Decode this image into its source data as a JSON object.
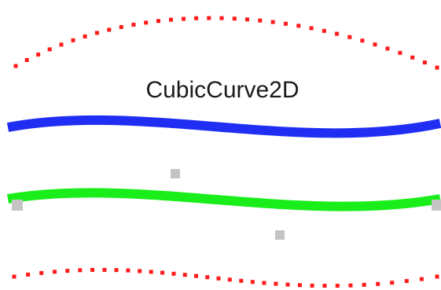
{
  "title": "CubicCurve2D",
  "colors": {
    "dotted_outline": "#ff1a1a",
    "curve_blue": "#1f2ef2",
    "curve_green": "#19ee1b",
    "control_point": "#c4c4c4"
  }
}
